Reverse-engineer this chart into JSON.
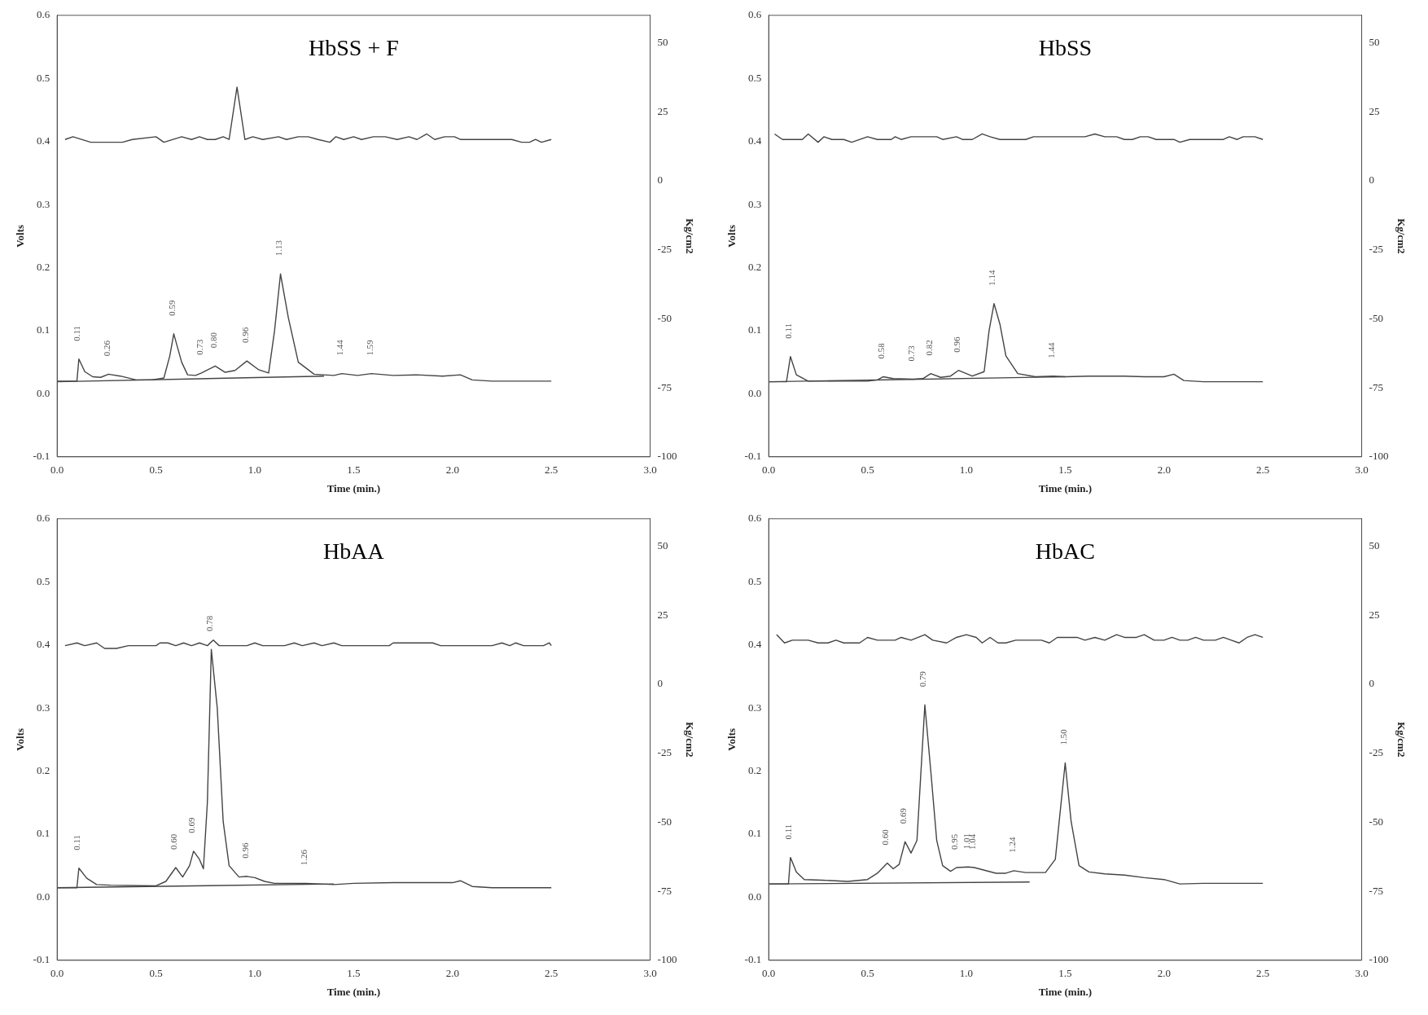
{
  "chart_data": [
    {
      "type": "line",
      "title": "HbSS + F",
      "xlabel": "Time (min.)",
      "ylabel": "Volts",
      "y2label": "Kg/cm2",
      "xlim": [
        0,
        3
      ],
      "xticks": [
        {
          "value": 0,
          "label": "0.0"
        },
        {
          "value": 0.5,
          "label": "0.5"
        },
        {
          "value": 1,
          "label": "1.0"
        },
        {
          "value": 1.5,
          "label": "1.5"
        },
        {
          "value": 2,
          "label": "2.0"
        },
        {
          "value": 2.5,
          "label": "2.5"
        },
        {
          "value": 3,
          "label": "3.0"
        }
      ],
      "ylim": [
        -0.1,
        0.6
      ],
      "yticks": [
        {
          "value": -0.1,
          "label": "-0.1"
        },
        {
          "value": 0,
          "label": "0.0"
        },
        {
          "value": 0.1,
          "label": "0.1"
        },
        {
          "value": 0.2,
          "label": "0.2"
        },
        {
          "value": 0.3,
          "label": "0.3"
        },
        {
          "value": 0.4,
          "label": "0.4"
        },
        {
          "value": 0.5,
          "label": "0.5"
        },
        {
          "value": 0.6,
          "label": "0.6"
        }
      ],
      "y2lim": [
        -100,
        60
      ],
      "y2ticks": [
        50,
        25,
        0,
        -25,
        -50,
        -75,
        -100
      ],
      "grid": false,
      "legend": false,
      "marker": "none",
      "series": [
        {
          "color": "#444444",
          "x": [
            0,
            0.1,
            0.11,
            0.14,
            0.18,
            0.22,
            0.26,
            0.32,
            0.4,
            0.48,
            0.54,
            0.57,
            0.59,
            0.63,
            0.66,
            0.7,
            0.73,
            0.8,
            0.85,
            0.9,
            0.96,
            1.02,
            1.07,
            1.1,
            1.13,
            1.17,
            1.22,
            1.3,
            1.4,
            1.44,
            1.52,
            1.59,
            1.7,
            1.82,
            1.95,
            2.04,
            2.1,
            2.2,
            2.5
          ],
          "values": [
            0.02,
            0.02,
            0.055,
            0.035,
            0.027,
            0.026,
            0.031,
            0.028,
            0.022,
            0.022,
            0.025,
            0.06,
            0.095,
            0.05,
            0.03,
            0.029,
            0.033,
            0.044,
            0.034,
            0.037,
            0.052,
            0.038,
            0.033,
            0.1,
            0.19,
            0.12,
            0.05,
            0.031,
            0.029,
            0.032,
            0.029,
            0.032,
            0.029,
            0.03,
            0.028,
            0.03,
            0.022,
            0.02,
            0.02
          ]
        },
        {
          "color": "#444444",
          "axis": "y2",
          "x": [
            0.04,
            0.08,
            0.17,
            0.33,
            0.38,
            0.5,
            0.54,
            0.63,
            0.68,
            0.72,
            0.76,
            0.8,
            0.84,
            0.87,
            0.91,
            0.95,
            0.99,
            1.04,
            1.12,
            1.16,
            1.22,
            1.27,
            1.32,
            1.38,
            1.41,
            1.45,
            1.5,
            1.54,
            1.6,
            1.66,
            1.72,
            1.78,
            1.82,
            1.87,
            1.91,
            1.96,
            2.01,
            2.04,
            2.3,
            2.35,
            2.39,
            2.42,
            2.45,
            2.5
          ],
          "values": [
            15,
            16,
            14,
            14,
            15,
            16,
            14,
            16,
            15,
            16,
            15,
            15,
            16,
            15,
            34,
            15,
            16,
            15,
            16,
            15,
            16,
            16,
            15,
            14,
            16,
            15,
            16,
            15,
            16,
            16,
            15,
            16,
            15,
            17,
            15,
            16,
            16,
            15,
            15,
            14,
            14,
            15,
            14,
            15
          ]
        },
        {
          "color": "#444444",
          "x": [
            0,
            1.35
          ],
          "values": [
            0.019,
            0.028
          ]
        }
      ],
      "annotations": [
        {
          "text": "0.11",
          "x": 0.11,
          "y": 0.055
        },
        {
          "text": "0.26",
          "x": 0.26,
          "y": 0.031
        },
        {
          "text": "0.59",
          "x": 0.59,
          "y": 0.095
        },
        {
          "text": "0.73",
          "x": 0.73,
          "y": 0.033
        },
        {
          "text": "0.80",
          "x": 0.8,
          "y": 0.044
        },
        {
          "text": "0.96",
          "x": 0.96,
          "y": 0.052
        },
        {
          "text": "1.13",
          "x": 1.13,
          "y": 0.19
        },
        {
          "text": "1.44",
          "x": 1.44,
          "y": 0.032
        },
        {
          "text": "1.59",
          "x": 1.59,
          "y": 0.032
        }
      ]
    },
    {
      "type": "line",
      "title": "HbSS",
      "xlabel": "Time (min.)",
      "ylabel": "Volts",
      "y2label": "Kg/cm2",
      "xlim": [
        0,
        3
      ],
      "xticks": [
        {
          "value": 0,
          "label": "0.0"
        },
        {
          "value": 0.5,
          "label": "0.5"
        },
        {
          "value": 1,
          "label": "1.0"
        },
        {
          "value": 1.5,
          "label": "1.5"
        },
        {
          "value": 2,
          "label": "2.0"
        },
        {
          "value": 2.5,
          "label": "2.5"
        },
        {
          "value": 3,
          "label": "3.0"
        }
      ],
      "ylim": [
        -0.1,
        0.6
      ],
      "yticks": [
        {
          "value": -0.1,
          "label": "-0.1"
        },
        {
          "value": 0,
          "label": "0.0"
        },
        {
          "value": 0.1,
          "label": "0.1"
        },
        {
          "value": 0.2,
          "label": "0.2"
        },
        {
          "value": 0.3,
          "label": "0.3"
        },
        {
          "value": 0.4,
          "label": "0.4"
        },
        {
          "value": 0.5,
          "label": "0.5"
        },
        {
          "value": 0.6,
          "label": "0.6"
        }
      ],
      "y2lim": [
        -100,
        60
      ],
      "y2ticks": [
        50,
        25,
        0,
        -25,
        -50,
        -75,
        -100
      ],
      "grid": false,
      "legend": false,
      "marker": "none",
      "series": [
        {
          "color": "#444444",
          "x": [
            0,
            0.09,
            0.11,
            0.14,
            0.2,
            0.5,
            0.55,
            0.58,
            0.63,
            0.73,
            0.78,
            0.82,
            0.87,
            0.92,
            0.96,
            1.03,
            1.09,
            1.115,
            1.14,
            1.17,
            1.2,
            1.26,
            1.35,
            1.44,
            1.5,
            1.62,
            1.8,
            1.9,
            2,
            2.05,
            2.1,
            2.2,
            2.5
          ],
          "values": [
            0.019,
            0.019,
            0.059,
            0.03,
            0.02,
            0.02,
            0.022,
            0.027,
            0.024,
            0.023,
            0.024,
            0.032,
            0.026,
            0.028,
            0.037,
            0.028,
            0.035,
            0.1,
            0.143,
            0.11,
            0.06,
            0.032,
            0.027,
            0.028,
            0.027,
            0.028,
            0.028,
            0.027,
            0.027,
            0.031,
            0.021,
            0.019,
            0.019
          ]
        },
        {
          "color": "#444444",
          "axis": "y2",
          "x": [
            0.03,
            0.07,
            0.17,
            0.2,
            0.25,
            0.28,
            0.32,
            0.38,
            0.42,
            0.5,
            0.55,
            0.62,
            0.64,
            0.67,
            0.72,
            0.85,
            0.88,
            0.95,
            0.98,
            1.03,
            1.08,
            1.12,
            1.17,
            1.3,
            1.34,
            1.6,
            1.65,
            1.7,
            1.76,
            1.8,
            1.84,
            1.88,
            1.92,
            1.96,
            2.05,
            2.08,
            2.13,
            2.3,
            2.33,
            2.37,
            2.4,
            2.46,
            2.5
          ],
          "values": [
            17,
            15,
            15,
            17,
            14,
            16,
            15,
            15,
            14,
            16,
            15,
            15,
            16,
            15,
            16,
            16,
            15,
            16,
            15,
            15,
            17,
            16,
            15,
            15,
            16,
            16,
            17,
            16,
            16,
            15,
            15,
            16,
            16,
            15,
            15,
            14,
            15,
            15,
            16,
            15,
            16,
            16,
            15
          ]
        },
        {
          "color": "#444444",
          "x": [
            0,
            1.5
          ],
          "values": [
            0.019,
            0.027
          ]
        }
      ],
      "annotations": [
        {
          "text": "0.11",
          "x": 0.11,
          "y": 0.059
        },
        {
          "text": "0.58",
          "x": 0.58,
          "y": 0.027
        },
        {
          "text": "0.73",
          "x": 0.73,
          "y": 0.023
        },
        {
          "text": "0.82",
          "x": 0.82,
          "y": 0.032
        },
        {
          "text": "0.96",
          "x": 0.96,
          "y": 0.037
        },
        {
          "text": "1.14",
          "x": 1.14,
          "y": 0.143
        },
        {
          "text": "1.44",
          "x": 1.44,
          "y": 0.028
        }
      ]
    },
    {
      "type": "line",
      "title": "HbAA",
      "xlabel": "Time (min.)",
      "ylabel": "Volts",
      "y2label": "Kg/cm2",
      "xlim": [
        0,
        3
      ],
      "xticks": [
        {
          "value": 0,
          "label": "0.0"
        },
        {
          "value": 0.5,
          "label": "0.5"
        },
        {
          "value": 1,
          "label": "1.0"
        },
        {
          "value": 1.5,
          "label": "1.5"
        },
        {
          "value": 2,
          "label": "2.0"
        },
        {
          "value": 2.5,
          "label": "2.5"
        },
        {
          "value": 3,
          "label": "3.0"
        }
      ],
      "ylim": [
        -0.1,
        0.6
      ],
      "yticks": [
        {
          "value": -0.1,
          "label": "-0.1"
        },
        {
          "value": 0,
          "label": "0.0"
        },
        {
          "value": 0.1,
          "label": "0.1"
        },
        {
          "value": 0.2,
          "label": "0.2"
        },
        {
          "value": 0.3,
          "label": "0.3"
        },
        {
          "value": 0.4,
          "label": "0.4"
        },
        {
          "value": 0.5,
          "label": "0.5"
        },
        {
          "value": 0.6,
          "label": "0.6"
        }
      ],
      "y2lim": [
        -100,
        60
      ],
      "y2ticks": [
        50,
        25,
        0,
        -25,
        -50,
        -75,
        -100
      ],
      "grid": false,
      "legend": false,
      "marker": "none",
      "series": [
        {
          "color": "#444444",
          "x": [
            0,
            0.1,
            0.11,
            0.15,
            0.2,
            0.27,
            0.5,
            0.55,
            0.6,
            0.635,
            0.67,
            0.69,
            0.72,
            0.74,
            0.76,
            0.78,
            0.81,
            0.84,
            0.87,
            0.92,
            0.96,
            1,
            1.05,
            1.1,
            1.2,
            1.26,
            1.4,
            1.5,
            1.7,
            1.9,
            2,
            2.04,
            2.1,
            2.2,
            2.5
          ],
          "values": [
            0.015,
            0.015,
            0.046,
            0.03,
            0.02,
            0.019,
            0.018,
            0.025,
            0.047,
            0.032,
            0.05,
            0.073,
            0.06,
            0.045,
            0.15,
            0.393,
            0.3,
            0.12,
            0.05,
            0.032,
            0.033,
            0.031,
            0.025,
            0.022,
            0.022,
            0.022,
            0.02,
            0.022,
            0.023,
            0.023,
            0.023,
            0.026,
            0.017,
            0.015,
            0.015
          ]
        },
        {
          "color": "#444444",
          "axis": "y2",
          "x": [
            0.04,
            0.1,
            0.14,
            0.2,
            0.24,
            0.3,
            0.36,
            0.5,
            0.52,
            0.56,
            0.6,
            0.64,
            0.68,
            0.72,
            0.76,
            0.79,
            0.82,
            0.96,
            1,
            1.04,
            1.15,
            1.2,
            1.24,
            1.3,
            1.34,
            1.4,
            1.44,
            1.55,
            1.68,
            1.7,
            1.9,
            1.94,
            2.2,
            2.25,
            2.29,
            2.32,
            2.36,
            2.46,
            2.49,
            2.5
          ],
          "values": [
            14,
            15,
            14,
            15,
            13,
            13,
            14,
            14,
            15,
            15,
            14,
            15,
            14,
            15,
            14,
            16,
            14,
            14,
            15,
            14,
            14,
            15,
            14,
            15,
            14,
            15,
            14,
            14,
            14,
            15,
            15,
            14,
            14,
            15,
            14,
            15,
            14,
            14,
            15,
            14
          ]
        },
        {
          "color": "#444444",
          "x": [
            0,
            1.4
          ],
          "values": [
            0.015,
            0.021
          ]
        }
      ],
      "annotations": [
        {
          "text": "0.11",
          "x": 0.11,
          "y": 0.046
        },
        {
          "text": "0.60",
          "x": 0.6,
          "y": 0.047
        },
        {
          "text": "0.69",
          "x": 0.69,
          "y": 0.073
        },
        {
          "text": "0.78",
          "x": 0.78,
          "y": 0.393
        },
        {
          "text": "0.96",
          "x": 0.96,
          "y": 0.033
        },
        {
          "text": "1.26",
          "x": 1.26,
          "y": 0.022
        }
      ]
    },
    {
      "type": "line",
      "title": "HbAC",
      "xlabel": "Time (min.)",
      "ylabel": "Volts",
      "y2label": "Kg/cm2",
      "xlim": [
        0,
        3
      ],
      "xticks": [
        {
          "value": 0,
          "label": "0.0"
        },
        {
          "value": 0.5,
          "label": "0.5"
        },
        {
          "value": 1,
          "label": "1.0"
        },
        {
          "value": 1.5,
          "label": "1.5"
        },
        {
          "value": 2,
          "label": "2.0"
        },
        {
          "value": 2.5,
          "label": "2.5"
        },
        {
          "value": 3,
          "label": "3.0"
        }
      ],
      "ylim": [
        -0.1,
        0.6
      ],
      "yticks": [
        {
          "value": -0.1,
          "label": "-0.1"
        },
        {
          "value": 0,
          "label": "0.0"
        },
        {
          "value": 0.1,
          "label": "0.1"
        },
        {
          "value": 0.2,
          "label": "0.2"
        },
        {
          "value": 0.3,
          "label": "0.3"
        },
        {
          "value": 0.4,
          "label": "0.4"
        },
        {
          "value": 0.5,
          "label": "0.5"
        },
        {
          "value": 0.6,
          "label": "0.6"
        }
      ],
      "y2lim": [
        -100,
        60
      ],
      "y2ticks": [
        50,
        25,
        0,
        -25,
        -50,
        -75,
        -100
      ],
      "grid": false,
      "legend": false,
      "marker": "none",
      "series": [
        {
          "color": "#444444",
          "x": [
            0,
            0.1,
            0.11,
            0.14,
            0.18,
            0.27,
            0.4,
            0.5,
            0.55,
            0.6,
            0.63,
            0.66,
            0.69,
            0.72,
            0.75,
            0.79,
            0.82,
            0.85,
            0.88,
            0.92,
            0.95,
            1.01,
            1.04,
            1.15,
            1.2,
            1.24,
            1.3,
            1.4,
            1.45,
            1.5,
            1.53,
            1.57,
            1.62,
            1.7,
            1.8,
            1.9,
            2,
            2.08,
            2.2,
            2.5
          ],
          "values": [
            0.021,
            0.021,
            0.063,
            0.04,
            0.028,
            0.027,
            0.025,
            0.028,
            0.038,
            0.054,
            0.045,
            0.052,
            0.088,
            0.07,
            0.09,
            0.305,
            0.2,
            0.09,
            0.05,
            0.041,
            0.047,
            0.048,
            0.047,
            0.038,
            0.038,
            0.042,
            0.039,
            0.039,
            0.06,
            0.213,
            0.12,
            0.05,
            0.04,
            0.037,
            0.035,
            0.031,
            0.028,
            0.021,
            0.022,
            0.022
          ]
        },
        {
          "color": "#444444",
          "axis": "y2",
          "x": [
            0.04,
            0.08,
            0.12,
            0.2,
            0.25,
            0.3,
            0.34,
            0.38,
            0.46,
            0.5,
            0.55,
            0.64,
            0.67,
            0.72,
            0.79,
            0.83,
            0.9,
            0.95,
            1,
            1.05,
            1.08,
            1.12,
            1.16,
            1.2,
            1.25,
            1.38,
            1.42,
            1.46,
            1.56,
            1.6,
            1.65,
            1.7,
            1.76,
            1.8,
            1.86,
            1.9,
            1.95,
            2,
            2.04,
            2.08,
            2.12,
            2.16,
            2.2,
            2.26,
            2.3,
            2.34,
            2.38,
            2.42,
            2.46,
            2.5
          ],
          "values": [
            18,
            15,
            16,
            16,
            15,
            15,
            16,
            15,
            15,
            17,
            16,
            16,
            17,
            16,
            18,
            16,
            15,
            17,
            18,
            17,
            15,
            17,
            15,
            15,
            16,
            16,
            15,
            17,
            17,
            16,
            17,
            16,
            18,
            17,
            17,
            18,
            16,
            16,
            17,
            16,
            16,
            17,
            16,
            16,
            17,
            16,
            15,
            17,
            18,
            17
          ]
        },
        {
          "color": "#444444",
          "x": [
            0,
            1.32
          ],
          "values": [
            0.021,
            0.024
          ]
        }
      ],
      "annotations": [
        {
          "text": "0.11",
          "x": 0.11,
          "y": 0.063
        },
        {
          "text": "0.60",
          "x": 0.6,
          "y": 0.054
        },
        {
          "text": "0.69",
          "x": 0.69,
          "y": 0.088
        },
        {
          "text": "0.79",
          "x": 0.79,
          "y": 0.305
        },
        {
          "text": "0.95",
          "x": 0.95,
          "y": 0.047
        },
        {
          "text": "1.01",
          "x": 1.01,
          "y": 0.048
        },
        {
          "text": "1.04",
          "x": 1.04,
          "y": 0.047
        },
        {
          "text": "1.24",
          "x": 1.24,
          "y": 0.042
        },
        {
          "text": "1.50",
          "x": 1.5,
          "y": 0.213
        }
      ]
    }
  ]
}
